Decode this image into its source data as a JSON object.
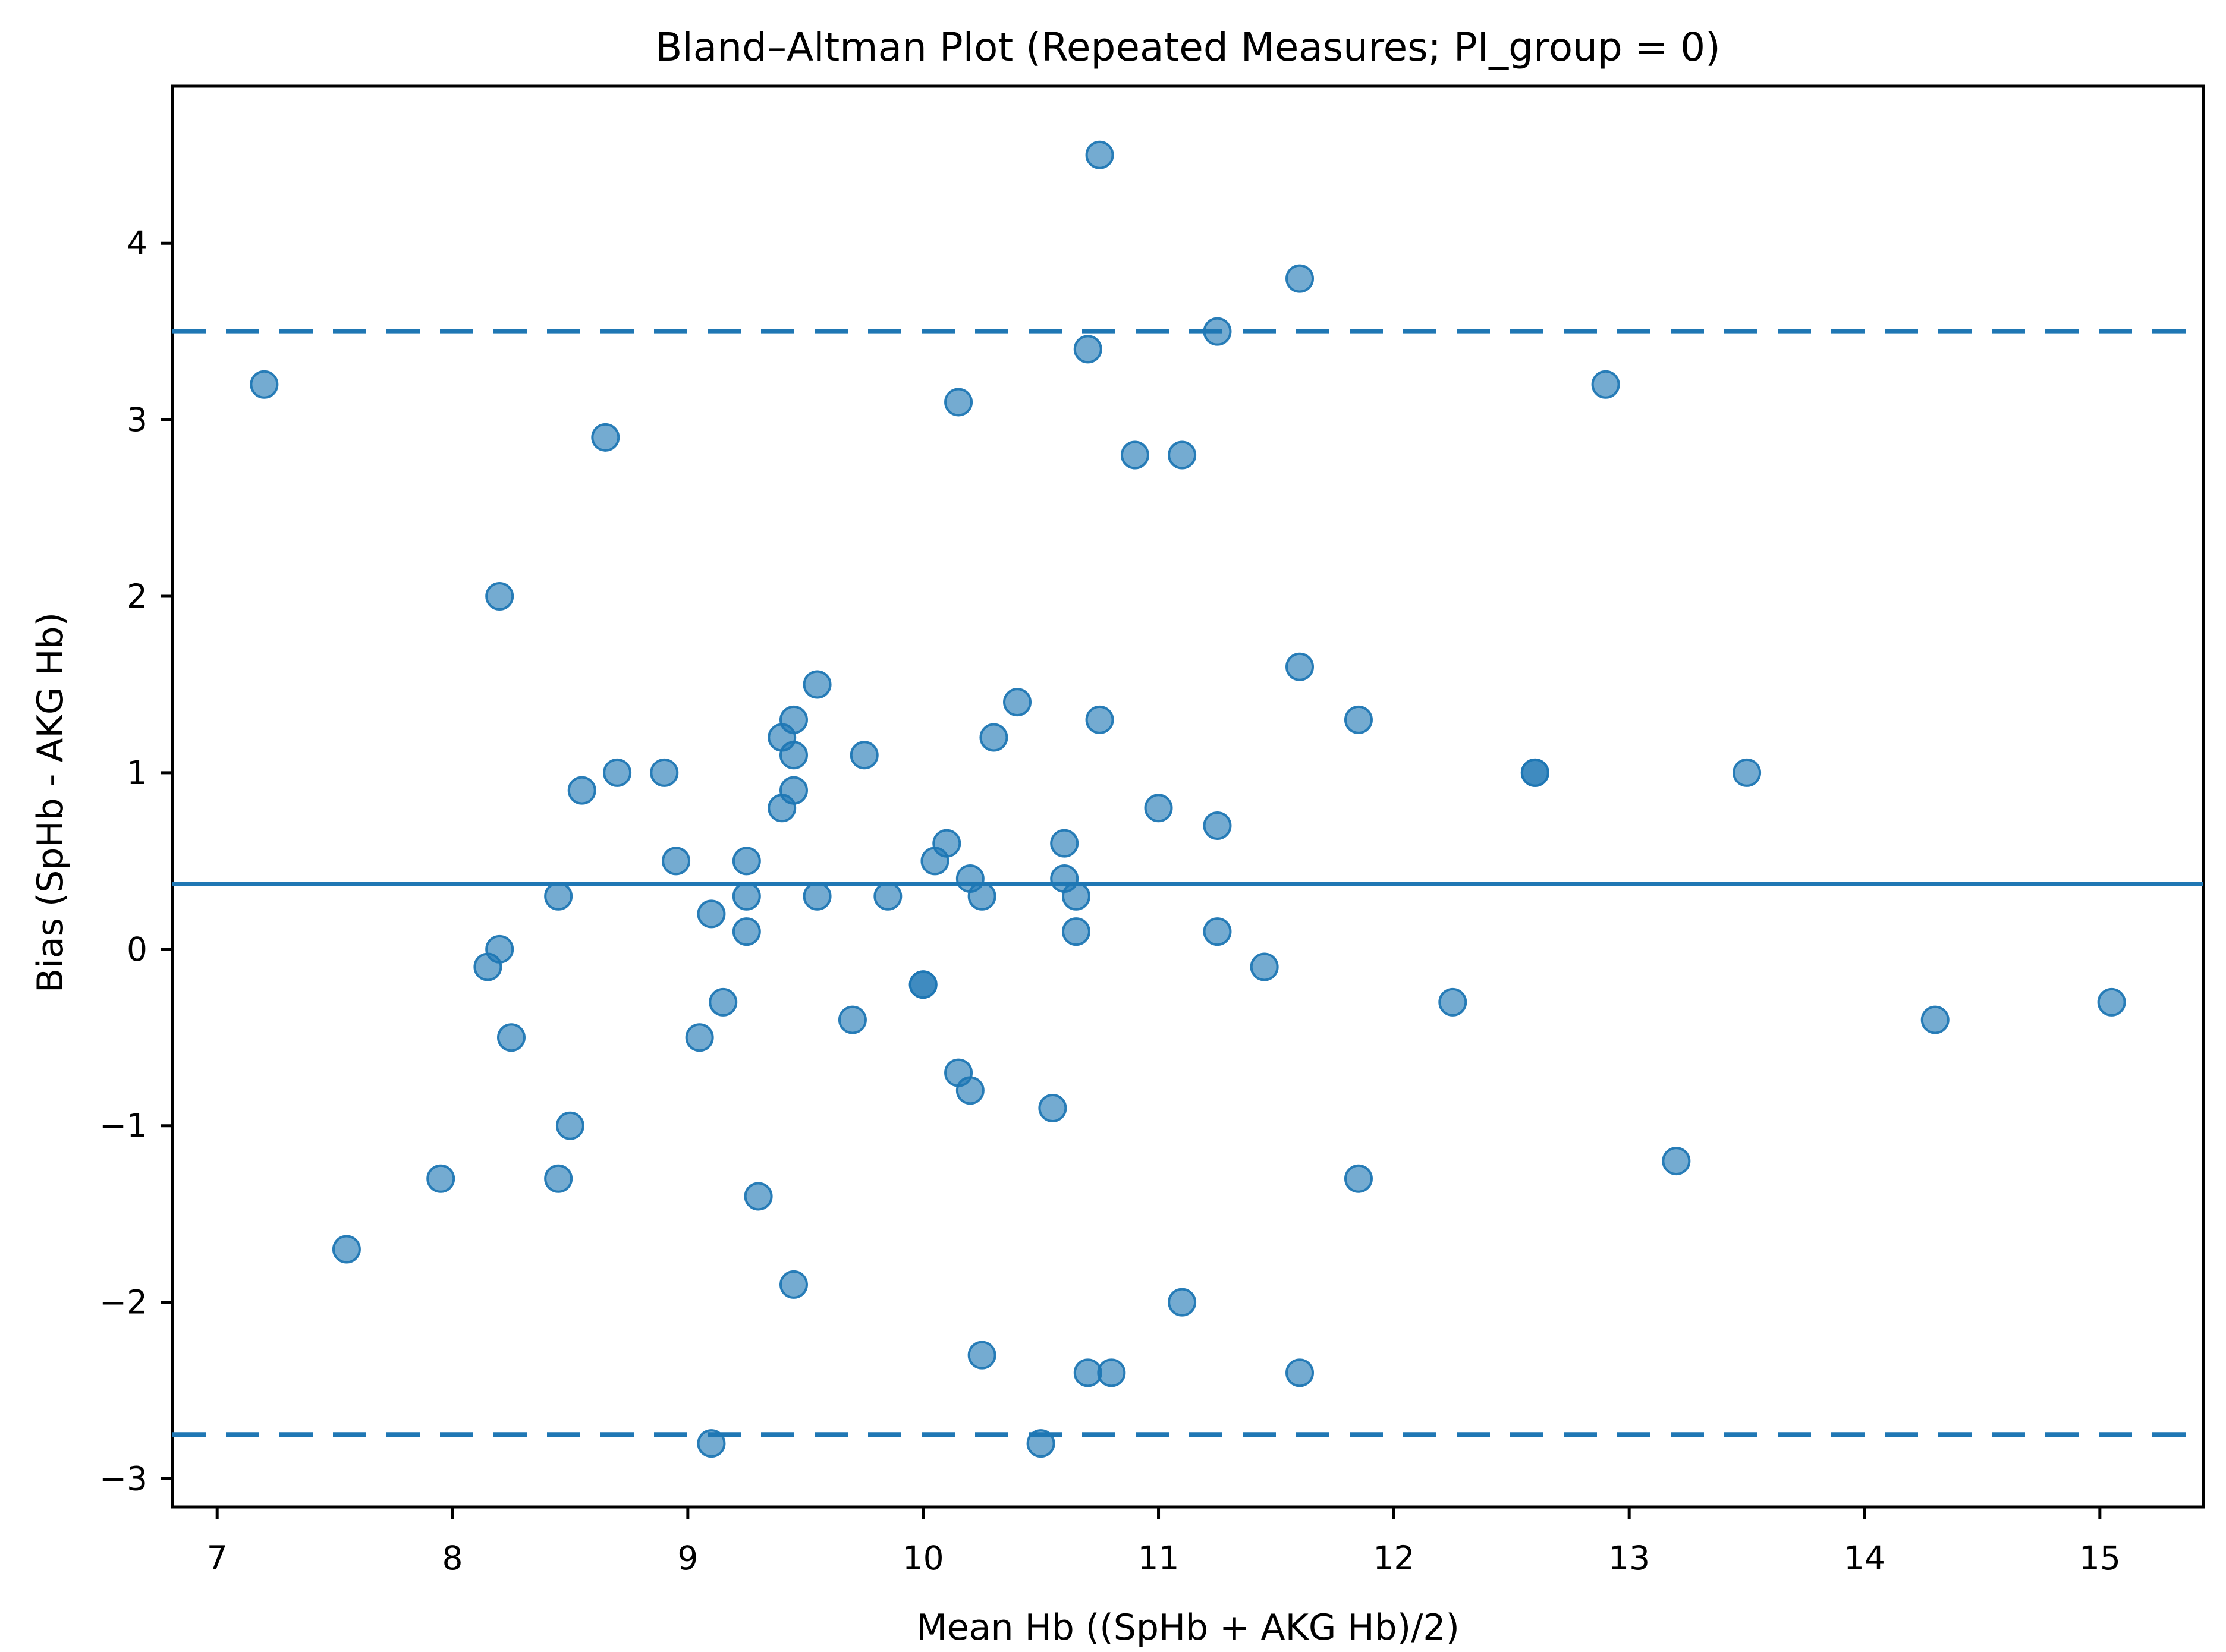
{
  "figure": {
    "background": "#ffffff"
  },
  "chart_data": {
    "type": "scatter",
    "title": "Bland–Altman Plot (Repeated Measures; PI_group = 0)",
    "xlabel": "Mean Hb ((SpHb + AKG Hb)/2)",
    "ylabel": "Bias (SpHb - AKG Hb)",
    "xlim": [
      6.81,
      15.44
    ],
    "ylim": [
      -3.16,
      4.89
    ],
    "x_ticks": [
      7,
      8,
      9,
      10,
      11,
      12,
      13,
      14,
      15
    ],
    "y_ticks": [
      4,
      3,
      2,
      1,
      0,
      -1,
      -2,
      -3
    ],
    "grid": false,
    "legend_position": "none",
    "marker_color": "#1f77b4",
    "marker_alpha": 0.62,
    "line_color": "#1f77b4",
    "mean_bias": 0.37,
    "loa_upper": 3.5,
    "loa_lower": -2.75,
    "points": [
      [
        7.2,
        3.2
      ],
      [
        8.65,
        2.9
      ],
      [
        8.2,
        2.0
      ],
      [
        10.15,
        3.1
      ],
      [
        10.7,
        3.4
      ],
      [
        10.75,
        4.5
      ],
      [
        11.25,
        3.5
      ],
      [
        10.9,
        2.8
      ],
      [
        11.1,
        2.8
      ],
      [
        11.6,
        3.8
      ],
      [
        12.9,
        3.2
      ],
      [
        11.6,
        1.6
      ],
      [
        9.55,
        1.5
      ],
      [
        10.4,
        1.4
      ],
      [
        9.45,
        1.3
      ],
      [
        10.75,
        1.3
      ],
      [
        11.85,
        1.3
      ],
      [
        9.4,
        1.2
      ],
      [
        10.3,
        1.2
      ],
      [
        9.45,
        1.1
      ],
      [
        9.75,
        1.1
      ],
      [
        8.7,
        1.0
      ],
      [
        8.9,
        1.0
      ],
      [
        12.6,
        1.0
      ],
      [
        12.6,
        1.0
      ],
      [
        13.5,
        1.0
      ],
      [
        8.55,
        0.9
      ],
      [
        9.45,
        0.9
      ],
      [
        9.4,
        0.8
      ],
      [
        11.0,
        0.8
      ],
      [
        11.25,
        0.7
      ],
      [
        10.1,
        0.6
      ],
      [
        10.6,
        0.6
      ],
      [
        8.95,
        0.5
      ],
      [
        9.25,
        0.5
      ],
      [
        10.05,
        0.5
      ],
      [
        10.2,
        0.4
      ],
      [
        10.6,
        0.4
      ],
      [
        8.45,
        0.3
      ],
      [
        9.25,
        0.3
      ],
      [
        9.55,
        0.3
      ],
      [
        9.85,
        0.3
      ],
      [
        10.25,
        0.3
      ],
      [
        10.65,
        0.3
      ],
      [
        9.1,
        0.2
      ],
      [
        9.25,
        0.1
      ],
      [
        10.65,
        0.1
      ],
      [
        11.25,
        0.1
      ],
      [
        8.2,
        0.0
      ],
      [
        8.15,
        -0.1
      ],
      [
        11.45,
        -0.1
      ],
      [
        10.0,
        -0.2
      ],
      [
        10.0,
        -0.2
      ],
      [
        9.15,
        -0.3
      ],
      [
        12.25,
        -0.3
      ],
      [
        15.05,
        -0.3
      ],
      [
        9.7,
        -0.4
      ],
      [
        14.3,
        -0.4
      ],
      [
        8.25,
        -0.5
      ],
      [
        9.05,
        -0.5
      ],
      [
        10.15,
        -0.7
      ],
      [
        10.2,
        -0.8
      ],
      [
        10.55,
        -0.9
      ],
      [
        8.5,
        -1.0
      ],
      [
        13.2,
        -1.2
      ],
      [
        7.95,
        -1.3
      ],
      [
        8.45,
        -1.3
      ],
      [
        11.85,
        -1.3
      ],
      [
        9.3,
        -1.4
      ],
      [
        7.55,
        -1.7
      ],
      [
        9.45,
        -1.9
      ],
      [
        11.1,
        -2.0
      ],
      [
        10.25,
        -2.3
      ],
      [
        10.7,
        -2.4
      ],
      [
        10.8,
        -2.4
      ],
      [
        11.6,
        -2.4
      ],
      [
        9.1,
        -2.8
      ],
      [
        10.5,
        -2.8
      ]
    ]
  }
}
